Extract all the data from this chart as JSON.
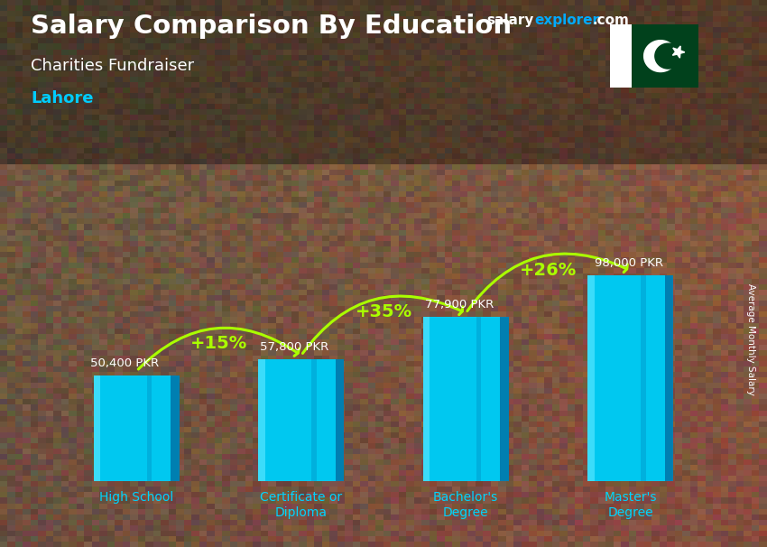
{
  "title": "Salary Comparison By Education",
  "subtitle": "Charities Fundraiser",
  "city": "Lahore",
  "ylabel": "Average Monthly Salary",
  "categories": [
    "High School",
    "Certificate or\nDiploma",
    "Bachelor's\nDegree",
    "Master's\nDegree"
  ],
  "values": [
    50400,
    57800,
    77900,
    98000
  ],
  "labels": [
    "50,400 PKR",
    "57,800 PKR",
    "77,900 PKR",
    "98,000 PKR"
  ],
  "pct_labels": [
    "+15%",
    "+35%",
    "+26%"
  ],
  "bar_color_main": "#00c8f0",
  "bar_color_dark": "#0077aa",
  "bar_color_light": "#55e5ff",
  "bg_color_top": "#5a4535",
  "bg_color_bottom": "#3a2a1a",
  "title_color": "#ffffff",
  "subtitle_color": "#ffffff",
  "city_color": "#00ccff",
  "label_color": "#ffffff",
  "pct_color": "#aaff00",
  "arrow_color": "#aaff00",
  "xticklabel_color": "#00d4ff",
  "figsize": [
    8.5,
    6.06
  ],
  "dpi": 100
}
